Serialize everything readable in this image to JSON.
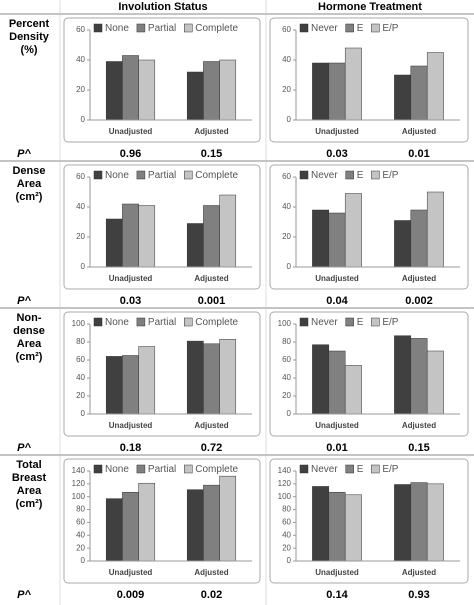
{
  "column_headers": [
    "Involution Status",
    "Hormone Treatment"
  ],
  "rows": [
    {
      "label": "Percent Density (%)",
      "p_label": "P^",
      "p_values": [
        "0.96",
        "0.15",
        "0.03",
        "0.01"
      ]
    },
    {
      "label": "Dense Area (cm²)",
      "p_label": "P^",
      "p_values": [
        "0.03",
        "0.001",
        "0.04",
        "0.002"
      ]
    },
    {
      "label": "Non-dense Area (cm²)",
      "p_label": "P^",
      "p_values": [
        "0.18",
        "0.72",
        "0.01",
        "0.15"
      ]
    },
    {
      "label": "Total Breast Area (cm²)",
      "p_label": "P^",
      "p_values": [
        "0.009",
        "0.02",
        "0.14",
        "0.93"
      ]
    }
  ],
  "chart_data": [
    {
      "type": "bar",
      "categories": [
        "Unadjusted",
        "Adjusted"
      ],
      "ylim": [
        0,
        60
      ],
      "yticks": [
        0,
        20,
        40,
        60
      ],
      "series": [
        {
          "name": "None",
          "color": "#404040",
          "values": [
            39,
            32
          ]
        },
        {
          "name": "Partial",
          "color": "#808080",
          "values": [
            43,
            39
          ]
        },
        {
          "name": "Complete",
          "color": "#c4c4c4",
          "values": [
            40,
            40
          ]
        }
      ]
    },
    {
      "type": "bar",
      "categories": [
        "Unadjusted",
        "Adjusted"
      ],
      "ylim": [
        0,
        60
      ],
      "yticks": [
        0,
        20,
        40,
        60
      ],
      "series": [
        {
          "name": "Never",
          "color": "#404040",
          "values": [
            38,
            30
          ]
        },
        {
          "name": "E",
          "color": "#808080",
          "values": [
            38,
            36
          ]
        },
        {
          "name": "E/P",
          "color": "#c4c4c4",
          "values": [
            48,
            45
          ]
        }
      ]
    },
    {
      "type": "bar",
      "categories": [
        "Unadjusted",
        "Adjusted"
      ],
      "ylim": [
        0,
        60
      ],
      "yticks": [
        0,
        20,
        40,
        60
      ],
      "series": [
        {
          "name": "None",
          "color": "#404040",
          "values": [
            32,
            29
          ]
        },
        {
          "name": "Partial",
          "color": "#808080",
          "values": [
            42,
            41
          ]
        },
        {
          "name": "Complete",
          "color": "#c4c4c4",
          "values": [
            41,
            48
          ]
        }
      ]
    },
    {
      "type": "bar",
      "categories": [
        "Unadjusted",
        "Adjusted"
      ],
      "ylim": [
        0,
        60
      ],
      "yticks": [
        0,
        20,
        40,
        60
      ],
      "series": [
        {
          "name": "Never",
          "color": "#404040",
          "values": [
            38,
            31
          ]
        },
        {
          "name": "E",
          "color": "#808080",
          "values": [
            36,
            38
          ]
        },
        {
          "name": "E/P",
          "color": "#c4c4c4",
          "values": [
            49,
            50
          ]
        }
      ]
    },
    {
      "type": "bar",
      "categories": [
        "Unadjusted",
        "Adjusted"
      ],
      "ylim": [
        0,
        100
      ],
      "yticks": [
        0,
        20,
        40,
        60,
        80,
        100
      ],
      "series": [
        {
          "name": "None",
          "color": "#404040",
          "values": [
            64,
            81
          ]
        },
        {
          "name": "Partial",
          "color": "#808080",
          "values": [
            65,
            78
          ]
        },
        {
          "name": "Complete",
          "color": "#c4c4c4",
          "values": [
            75,
            83
          ]
        }
      ]
    },
    {
      "type": "bar",
      "categories": [
        "Unadjusted",
        "Adjusted"
      ],
      "ylim": [
        0,
        100
      ],
      "yticks": [
        0,
        20,
        40,
        60,
        80,
        100
      ],
      "series": [
        {
          "name": "Never",
          "color": "#404040",
          "values": [
            77,
            87
          ]
        },
        {
          "name": "E",
          "color": "#808080",
          "values": [
            70,
            84
          ]
        },
        {
          "name": "E/P",
          "color": "#c4c4c4",
          "values": [
            54,
            70
          ]
        }
      ]
    },
    {
      "type": "bar",
      "categories": [
        "Unadjusted",
        "Adjusted"
      ],
      "ylim": [
        0,
        140
      ],
      "yticks": [
        0,
        20,
        40,
        60,
        80,
        100,
        120,
        140
      ],
      "series": [
        {
          "name": "None",
          "color": "#404040",
          "values": [
            97,
            111
          ]
        },
        {
          "name": "Partial",
          "color": "#808080",
          "values": [
            107,
            118
          ]
        },
        {
          "name": "Complete",
          "color": "#c4c4c4",
          "values": [
            121,
            132
          ]
        }
      ]
    },
    {
      "type": "bar",
      "categories": [
        "Unadjusted",
        "Adjusted"
      ],
      "ylim": [
        0,
        140
      ],
      "yticks": [
        0,
        20,
        40,
        60,
        80,
        100,
        120,
        140
      ],
      "series": [
        {
          "name": "Never",
          "color": "#404040",
          "values": [
            116,
            119
          ]
        },
        {
          "name": "E",
          "color": "#808080",
          "values": [
            107,
            122
          ]
        },
        {
          "name": "E/P",
          "color": "#c4c4c4",
          "values": [
            103,
            120
          ]
        }
      ]
    }
  ]
}
